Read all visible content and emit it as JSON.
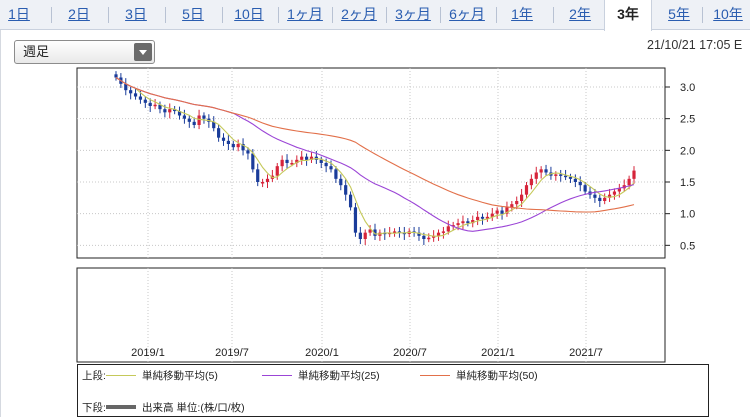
{
  "tabs": [
    {
      "label": "1日",
      "active": false
    },
    {
      "label": "2日",
      "active": false
    },
    {
      "label": "3日",
      "active": false
    },
    {
      "label": "5日",
      "active": false
    },
    {
      "label": "10日",
      "active": false
    },
    {
      "label": "1ヶ月",
      "active": false
    },
    {
      "label": "2ヶ月",
      "active": false
    },
    {
      "label": "3ヶ月",
      "active": false
    },
    {
      "label": "6ヶ月",
      "active": false
    },
    {
      "label": "1年",
      "active": false
    },
    {
      "label": "2年",
      "active": false
    },
    {
      "label": "3年",
      "active": true
    },
    {
      "label": "5年",
      "active": false
    },
    {
      "label": "10年",
      "active": false
    }
  ],
  "period_select": {
    "value": "週足"
  },
  "timestamp": "21/10/21 17:05 E",
  "chart_data": {
    "type": "candlestick",
    "y_ticks": [
      "3.0",
      "2.5",
      "2.0",
      "1.5",
      "1.0",
      "0.5"
    ],
    "y_tick_values": [
      3.0,
      2.5,
      2.0,
      1.5,
      1.0,
      0.5
    ],
    "ylim": [
      0.3,
      3.3
    ],
    "x_ticks": [
      "2019/1",
      "2019/7",
      "2020/1",
      "2020/7",
      "2021/1",
      "2021/7"
    ],
    "close_weekly": [
      3.15,
      3.05,
      2.95,
      2.9,
      2.85,
      2.8,
      2.75,
      2.7,
      2.72,
      2.65,
      2.6,
      2.65,
      2.62,
      2.55,
      2.5,
      2.45,
      2.4,
      2.55,
      2.5,
      2.45,
      2.35,
      2.2,
      2.15,
      2.1,
      2.05,
      2.1,
      2.0,
      1.95,
      1.7,
      1.5,
      1.5,
      1.55,
      1.6,
      1.75,
      1.85,
      1.8,
      1.8,
      1.85,
      1.9,
      1.85,
      1.9,
      1.85,
      1.8,
      1.75,
      1.7,
      1.55,
      1.45,
      1.3,
      1.1,
      0.7,
      0.6,
      0.7,
      0.75,
      0.65,
      0.7,
      0.68,
      0.7,
      0.72,
      0.7,
      0.68,
      0.72,
      0.7,
      0.65,
      0.6,
      0.62,
      0.65,
      0.7,
      0.72,
      0.8,
      0.82,
      0.85,
      0.88,
      0.85,
      0.9,
      0.95,
      0.92,
      0.95,
      1.0,
      1.05,
      1.0,
      1.1,
      1.15,
      1.2,
      1.3,
      1.45,
      1.55,
      1.65,
      1.7,
      1.65,
      1.6,
      1.62,
      1.6,
      1.58,
      1.55,
      1.5,
      1.45,
      1.35,
      1.3,
      1.25,
      1.2,
      1.25,
      1.3,
      1.35,
      1.4,
      1.45,
      1.55,
      1.68
    ],
    "sma_windows": [
      5,
      25,
      50
    ]
  },
  "legend": {
    "top_label": "上段:",
    "bottom_label": "下段:",
    "series": [
      {
        "name": "単純移動平均(5)",
        "color": "#c5c95a"
      },
      {
        "name": "単純移動平均(25)",
        "color": "#9b45d6"
      },
      {
        "name": "単純移動平均(50)",
        "color": "#e2704a"
      }
    ],
    "volume_label": "出来高 単位:(株/口/枚)",
    "volume_color": "#666666"
  },
  "colors": {
    "up": "#d6243a",
    "down": "#1a3c9a",
    "grid": "#c8c8c8"
  }
}
